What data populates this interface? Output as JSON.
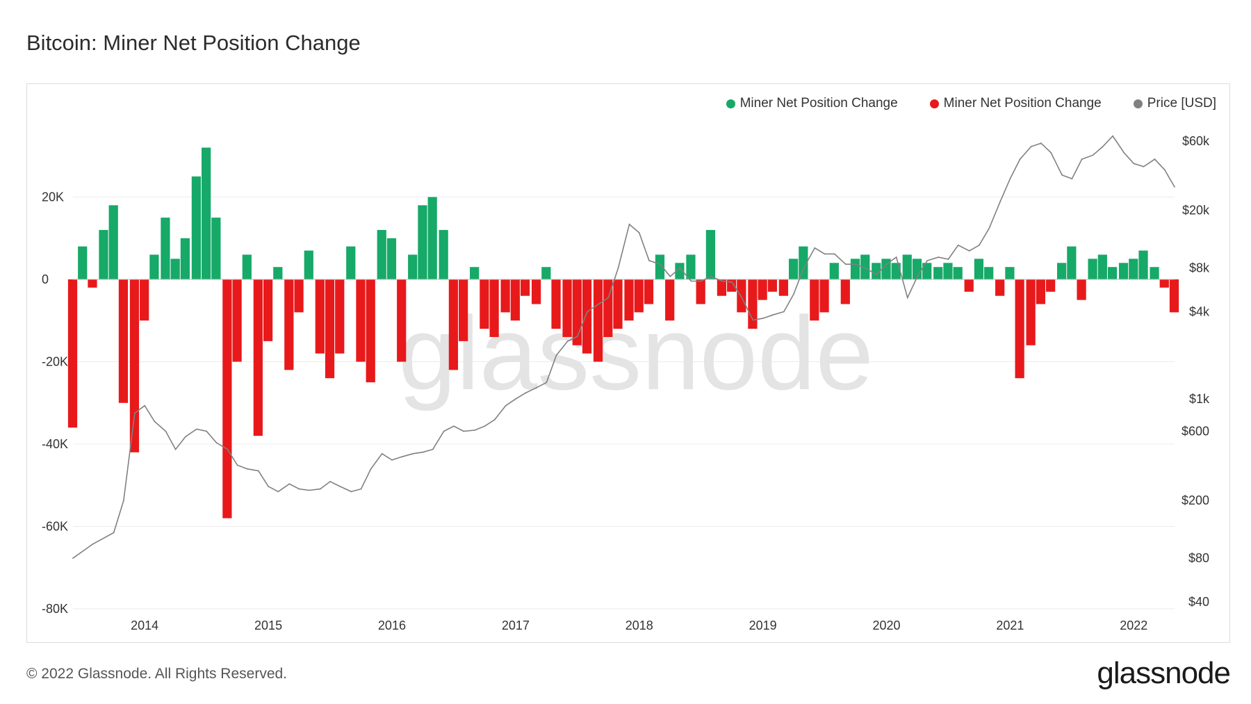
{
  "header": {
    "title": "Bitcoin: Miner Net Position Change"
  },
  "legend": [
    {
      "label": "Miner Net Position Change",
      "color": "#16a968"
    },
    {
      "label": "Miner Net Position Change",
      "color": "#e8191b"
    },
    {
      "label": "Price [USD]",
      "color": "#808080"
    }
  ],
  "footer": {
    "copyright": "© 2022 Glassnode. All Rights Reserved.",
    "brand": "glassnode"
  },
  "watermark": "glassnode",
  "chart_data": {
    "type": "bar",
    "title": "Bitcoin: Miner Net Position Change",
    "x_range": [
      2013.42,
      2022.33
    ],
    "left_axis": {
      "ticks": [
        20000,
        0,
        -20000,
        -40000,
        -60000,
        -80000
      ],
      "tick_labels": [
        "20K",
        "0",
        "-20K",
        "-40K",
        "-60K",
        "-80K"
      ],
      "range": [
        -80000,
        40000
      ]
    },
    "right_axis": {
      "scale": "log",
      "ticks": [
        60000,
        20000,
        8000,
        4000,
        1000,
        600,
        200,
        80,
        40
      ],
      "tick_labels": [
        "$60k",
        "$20k",
        "$8k",
        "$4k",
        "$1k",
        "$600",
        "$200",
        "$80",
        "$40"
      ]
    },
    "x_ticks": [
      2014,
      2015,
      2016,
      2017,
      2018,
      2019,
      2020,
      2021,
      2022
    ],
    "x_tick_labels": [
      "2014",
      "2015",
      "2016",
      "2017",
      "2018",
      "2019",
      "2020",
      "2021",
      "2022"
    ],
    "grid": true,
    "legend_position": "top-right",
    "series": [
      {
        "name": "Miner Net Position Change",
        "kind": "bar",
        "color": "#16a968",
        "color_negative": "#e8191b",
        "points": [
          [
            2013.42,
            -36000
          ],
          [
            2013.5,
            8000
          ],
          [
            2013.58,
            -2000
          ],
          [
            2013.67,
            12000
          ],
          [
            2013.75,
            18000
          ],
          [
            2013.83,
            -30000
          ],
          [
            2013.92,
            -42000
          ],
          [
            2014.0,
            -10000
          ],
          [
            2014.08,
            6000
          ],
          [
            2014.17,
            15000
          ],
          [
            2014.25,
            5000
          ],
          [
            2014.33,
            10000
          ],
          [
            2014.42,
            25000
          ],
          [
            2014.5,
            32000
          ],
          [
            2014.58,
            15000
          ],
          [
            2014.67,
            -58000
          ],
          [
            2014.75,
            -20000
          ],
          [
            2014.83,
            6000
          ],
          [
            2014.92,
            -38000
          ],
          [
            2015.0,
            -15000
          ],
          [
            2015.08,
            3000
          ],
          [
            2015.17,
            -22000
          ],
          [
            2015.25,
            -8000
          ],
          [
            2015.33,
            7000
          ],
          [
            2015.42,
            -18000
          ],
          [
            2015.5,
            -24000
          ],
          [
            2015.58,
            -18000
          ],
          [
            2015.67,
            8000
          ],
          [
            2015.75,
            -20000
          ],
          [
            2015.83,
            -25000
          ],
          [
            2015.92,
            12000
          ],
          [
            2016.0,
            10000
          ],
          [
            2016.08,
            -20000
          ],
          [
            2016.17,
            6000
          ],
          [
            2016.25,
            18000
          ],
          [
            2016.33,
            20000
          ],
          [
            2016.42,
            12000
          ],
          [
            2016.5,
            -22000
          ],
          [
            2016.58,
            -15000
          ],
          [
            2016.67,
            3000
          ],
          [
            2016.75,
            -12000
          ],
          [
            2016.83,
            -14000
          ],
          [
            2016.92,
            -8000
          ],
          [
            2017.0,
            -10000
          ],
          [
            2017.08,
            -4000
          ],
          [
            2017.17,
            -6000
          ],
          [
            2017.25,
            3000
          ],
          [
            2017.33,
            -12000
          ],
          [
            2017.42,
            -14000
          ],
          [
            2017.5,
            -16000
          ],
          [
            2017.58,
            -18000
          ],
          [
            2017.67,
            -20000
          ],
          [
            2017.75,
            -14000
          ],
          [
            2017.83,
            -12000
          ],
          [
            2017.92,
            -10000
          ],
          [
            2018.0,
            -8000
          ],
          [
            2018.08,
            -6000
          ],
          [
            2018.17,
            6000
          ],
          [
            2018.25,
            -10000
          ],
          [
            2018.33,
            4000
          ],
          [
            2018.42,
            6000
          ],
          [
            2018.5,
            -6000
          ],
          [
            2018.58,
            12000
          ],
          [
            2018.67,
            -4000
          ],
          [
            2018.75,
            -3000
          ],
          [
            2018.83,
            -8000
          ],
          [
            2018.92,
            -12000
          ],
          [
            2019.0,
            -5000
          ],
          [
            2019.08,
            -3000
          ],
          [
            2019.17,
            -4000
          ],
          [
            2019.25,
            5000
          ],
          [
            2019.33,
            8000
          ],
          [
            2019.42,
            -10000
          ],
          [
            2019.5,
            -8000
          ],
          [
            2019.58,
            4000
          ],
          [
            2019.67,
            -6000
          ],
          [
            2019.75,
            5000
          ],
          [
            2019.83,
            6000
          ],
          [
            2019.92,
            4000
          ],
          [
            2020.0,
            5000
          ],
          [
            2020.08,
            4000
          ],
          [
            2020.17,
            6000
          ],
          [
            2020.25,
            5000
          ],
          [
            2020.33,
            4000
          ],
          [
            2020.42,
            3000
          ],
          [
            2020.5,
            4000
          ],
          [
            2020.58,
            3000
          ],
          [
            2020.67,
            -3000
          ],
          [
            2020.75,
            5000
          ],
          [
            2020.83,
            3000
          ],
          [
            2020.92,
            -4000
          ],
          [
            2021.0,
            3000
          ],
          [
            2021.08,
            -24000
          ],
          [
            2021.17,
            -16000
          ],
          [
            2021.25,
            -6000
          ],
          [
            2021.33,
            -3000
          ],
          [
            2021.42,
            4000
          ],
          [
            2021.5,
            8000
          ],
          [
            2021.58,
            -5000
          ],
          [
            2021.67,
            5000
          ],
          [
            2021.75,
            6000
          ],
          [
            2021.83,
            3000
          ],
          [
            2021.92,
            4000
          ],
          [
            2022.0,
            5000
          ],
          [
            2022.08,
            7000
          ],
          [
            2022.17,
            3000
          ],
          [
            2022.25,
            -2000
          ],
          [
            2022.33,
            -8000
          ]
        ]
      },
      {
        "name": "Price [USD]",
        "kind": "line",
        "color": "#808080",
        "points": [
          [
            2013.42,
            80
          ],
          [
            2013.58,
            100
          ],
          [
            2013.75,
            120
          ],
          [
            2013.83,
            200
          ],
          [
            2013.92,
            800
          ],
          [
            2014.0,
            900
          ],
          [
            2014.08,
            700
          ],
          [
            2014.17,
            600
          ],
          [
            2014.25,
            450
          ],
          [
            2014.33,
            550
          ],
          [
            2014.42,
            620
          ],
          [
            2014.5,
            600
          ],
          [
            2014.58,
            500
          ],
          [
            2014.67,
            450
          ],
          [
            2014.75,
            350
          ],
          [
            2014.83,
            330
          ],
          [
            2014.92,
            320
          ],
          [
            2015.0,
            250
          ],
          [
            2015.08,
            230
          ],
          [
            2015.17,
            260
          ],
          [
            2015.25,
            240
          ],
          [
            2015.33,
            235
          ],
          [
            2015.42,
            240
          ],
          [
            2015.5,
            270
          ],
          [
            2015.58,
            250
          ],
          [
            2015.67,
            230
          ],
          [
            2015.75,
            240
          ],
          [
            2015.83,
            330
          ],
          [
            2015.92,
            420
          ],
          [
            2016.0,
            380
          ],
          [
            2016.08,
            400
          ],
          [
            2016.17,
            420
          ],
          [
            2016.25,
            430
          ],
          [
            2016.33,
            450
          ],
          [
            2016.42,
            600
          ],
          [
            2016.5,
            650
          ],
          [
            2016.58,
            600
          ],
          [
            2016.67,
            610
          ],
          [
            2016.75,
            650
          ],
          [
            2016.83,
            720
          ],
          [
            2016.92,
            900
          ],
          [
            2017.0,
            1000
          ],
          [
            2017.08,
            1100
          ],
          [
            2017.17,
            1200
          ],
          [
            2017.25,
            1300
          ],
          [
            2017.33,
            2000
          ],
          [
            2017.42,
            2500
          ],
          [
            2017.5,
            2700
          ],
          [
            2017.58,
            4000
          ],
          [
            2017.67,
            4500
          ],
          [
            2017.75,
            5000
          ],
          [
            2017.83,
            8000
          ],
          [
            2017.92,
            16000
          ],
          [
            2018.0,
            14000
          ],
          [
            2018.08,
            9000
          ],
          [
            2018.17,
            8500
          ],
          [
            2018.25,
            7000
          ],
          [
            2018.33,
            8000
          ],
          [
            2018.42,
            6500
          ],
          [
            2018.5,
            6500
          ],
          [
            2018.58,
            7000
          ],
          [
            2018.67,
            6500
          ],
          [
            2018.75,
            6400
          ],
          [
            2018.83,
            5000
          ],
          [
            2018.92,
            3500
          ],
          [
            2019.0,
            3600
          ],
          [
            2019.08,
            3800
          ],
          [
            2019.17,
            4000
          ],
          [
            2019.25,
            5300
          ],
          [
            2019.33,
            8000
          ],
          [
            2019.42,
            11000
          ],
          [
            2019.5,
            10000
          ],
          [
            2019.58,
            10000
          ],
          [
            2019.67,
            8500
          ],
          [
            2019.75,
            8500
          ],
          [
            2019.83,
            8000
          ],
          [
            2019.92,
            7200
          ],
          [
            2020.0,
            8500
          ],
          [
            2020.08,
            9500
          ],
          [
            2020.17,
            5000
          ],
          [
            2020.25,
            7000
          ],
          [
            2020.33,
            9000
          ],
          [
            2020.42,
            9500
          ],
          [
            2020.5,
            9200
          ],
          [
            2020.58,
            11500
          ],
          [
            2020.67,
            10500
          ],
          [
            2020.75,
            11500
          ],
          [
            2020.83,
            15000
          ],
          [
            2020.92,
            23000
          ],
          [
            2021.0,
            33000
          ],
          [
            2021.08,
            45000
          ],
          [
            2021.17,
            55000
          ],
          [
            2021.25,
            58000
          ],
          [
            2021.33,
            50000
          ],
          [
            2021.42,
            35000
          ],
          [
            2021.5,
            33000
          ],
          [
            2021.58,
            45000
          ],
          [
            2021.67,
            48000
          ],
          [
            2021.75,
            55000
          ],
          [
            2021.83,
            65000
          ],
          [
            2021.92,
            50000
          ],
          [
            2022.0,
            42000
          ],
          [
            2022.08,
            40000
          ],
          [
            2022.17,
            45000
          ],
          [
            2022.25,
            38000
          ],
          [
            2022.33,
            29000
          ]
        ]
      }
    ]
  }
}
